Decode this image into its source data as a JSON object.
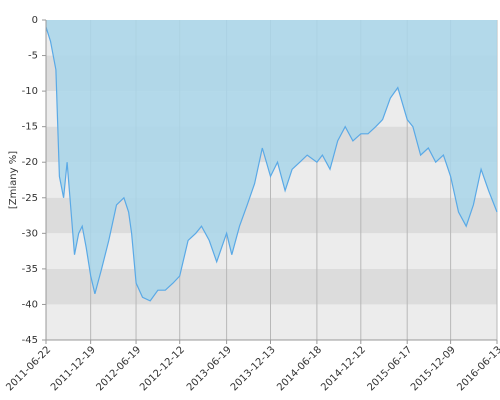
{
  "chart_data": {
    "type": "area",
    "y_label": "[Zmiany %]",
    "x": [
      "2011-06-22",
      "2011-07-10",
      "2011-08-01",
      "2011-08-15",
      "2011-09-01",
      "2011-09-15",
      "2011-10-01",
      "2011-10-15",
      "2011-11-01",
      "2011-11-15",
      "2011-12-01",
      "2011-12-19",
      "2012-01-05",
      "2012-02-01",
      "2012-03-01",
      "2012-04-01",
      "2012-05-01",
      "2012-05-20",
      "2012-06-01",
      "2012-06-19",
      "2012-07-15",
      "2012-08-15",
      "2012-09-15",
      "2012-10-15",
      "2012-11-15",
      "2012-12-12",
      "2013-01-15",
      "2013-02-15",
      "2013-03-10",
      "2013-04-10",
      "2013-05-10",
      "2013-06-19",
      "2013-07-10",
      "2013-08-10",
      "2013-09-10",
      "2013-10-10",
      "2013-11-10",
      "2013-12-13",
      "2014-01-10",
      "2014-02-10",
      "2014-03-10",
      "2014-04-10",
      "2014-05-10",
      "2014-06-18",
      "2014-07-10",
      "2014-08-10",
      "2014-09-10",
      "2014-10-10",
      "2014-11-10",
      "2014-12-12",
      "2015-01-10",
      "2015-02-10",
      "2015-03-10",
      "2015-04-10",
      "2015-05-10",
      "2015-06-17",
      "2015-07-10",
      "2015-08-10",
      "2015-09-10",
      "2015-10-10",
      "2015-11-10",
      "2015-12-09",
      "2016-01-10",
      "2016-02-10",
      "2016-03-10",
      "2016-04-10",
      "2016-05-10",
      "2016-06-13"
    ],
    "values": [
      -1,
      -3,
      -7,
      -22,
      -25,
      -20,
      -27,
      -33,
      -30,
      -29,
      -32,
      -36,
      -38.5,
      -35,
      -31,
      -26,
      -25,
      -27,
      -30,
      -37,
      -39,
      -39.5,
      -38,
      -38,
      -37,
      -36,
      -31,
      -30,
      -29,
      -31,
      -34,
      -30,
      -33,
      -29,
      -26,
      -23,
      -18,
      -22,
      -20,
      -24,
      -21,
      -20,
      -19,
      -20,
      -19,
      -21,
      -17,
      -15,
      -17,
      -16,
      -16,
      -15,
      -14,
      -11,
      -9.5,
      -14,
      -15,
      -19,
      -18,
      -20,
      -19,
      -22,
      -27,
      -29,
      -26,
      -21,
      -24,
      -27
    ],
    "color": "#5aa9e6",
    "area_color": "#a9d6ea",
    "xlim": [
      "2011-06-22",
      "2016-06-13"
    ],
    "xticks": [
      "2011-06-22",
      "2011-12-19",
      "2012-06-19",
      "2012-12-12",
      "2013-06-19",
      "2013-12-13",
      "2014-06-18",
      "2014-12-12",
      "2015-06-17",
      "2015-12-09",
      "2016-06-13"
    ],
    "ylim": [
      -45,
      0
    ],
    "yticks": [
      0,
      -5,
      -10,
      -15,
      -20,
      -25,
      -30,
      -35,
      -40,
      -45
    ],
    "grid": true
  }
}
